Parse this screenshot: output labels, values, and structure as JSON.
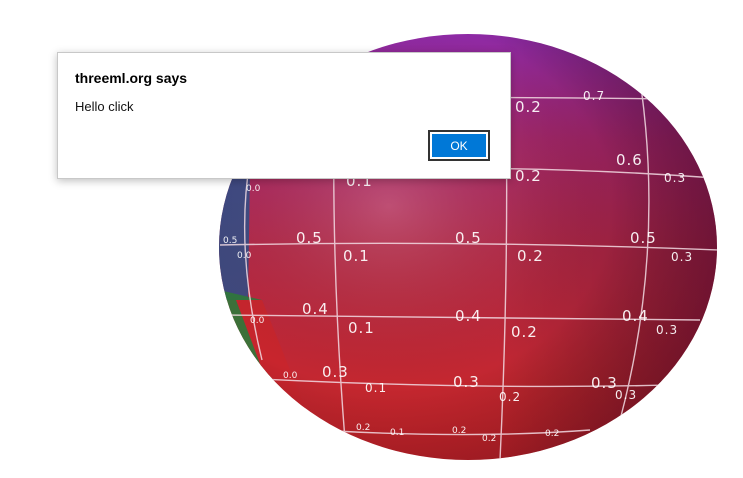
{
  "dialog": {
    "title": "threeml.org says",
    "message": "Hello click",
    "ok_label": "OK"
  },
  "sphere": {
    "colors": {
      "top": "#9c2aa0",
      "upper_mid": "#b1285e",
      "middle": "#b52845",
      "bottom": "#c8252d",
      "left_band_blue": "#2a4f8a",
      "left_band_green": "#2f7a3a",
      "grid": "#f2d8e0"
    },
    "labels": {
      "row_07": [
        "0.7"
      ],
      "row_06": [
        "0.6",
        "0.3"
      ],
      "row_02a": [
        "0.2"
      ],
      "row_01a": [
        "0.0",
        "0.1",
        "0.2"
      ],
      "row_05": [
        "0.5",
        "0.5",
        "0.5",
        "0.5"
      ],
      "row_equator": [
        "0.0",
        "0.1",
        "0.2",
        "0.3"
      ],
      "row_04": [
        "0.4",
        "0.4",
        "0.4"
      ],
      "row_lower1": [
        "0.0",
        "0.1",
        "0.2",
        "0.3"
      ],
      "row_03": [
        "0.3",
        "0.3",
        "0.3"
      ],
      "row_lower2": [
        "0.0",
        "0.1",
        "0.2",
        "0.3"
      ],
      "row_bottom": [
        "0.2",
        "0.1",
        "0.2",
        "0.2",
        "0.2"
      ],
      "left_edge": [
        "0.5"
      ]
    }
  }
}
